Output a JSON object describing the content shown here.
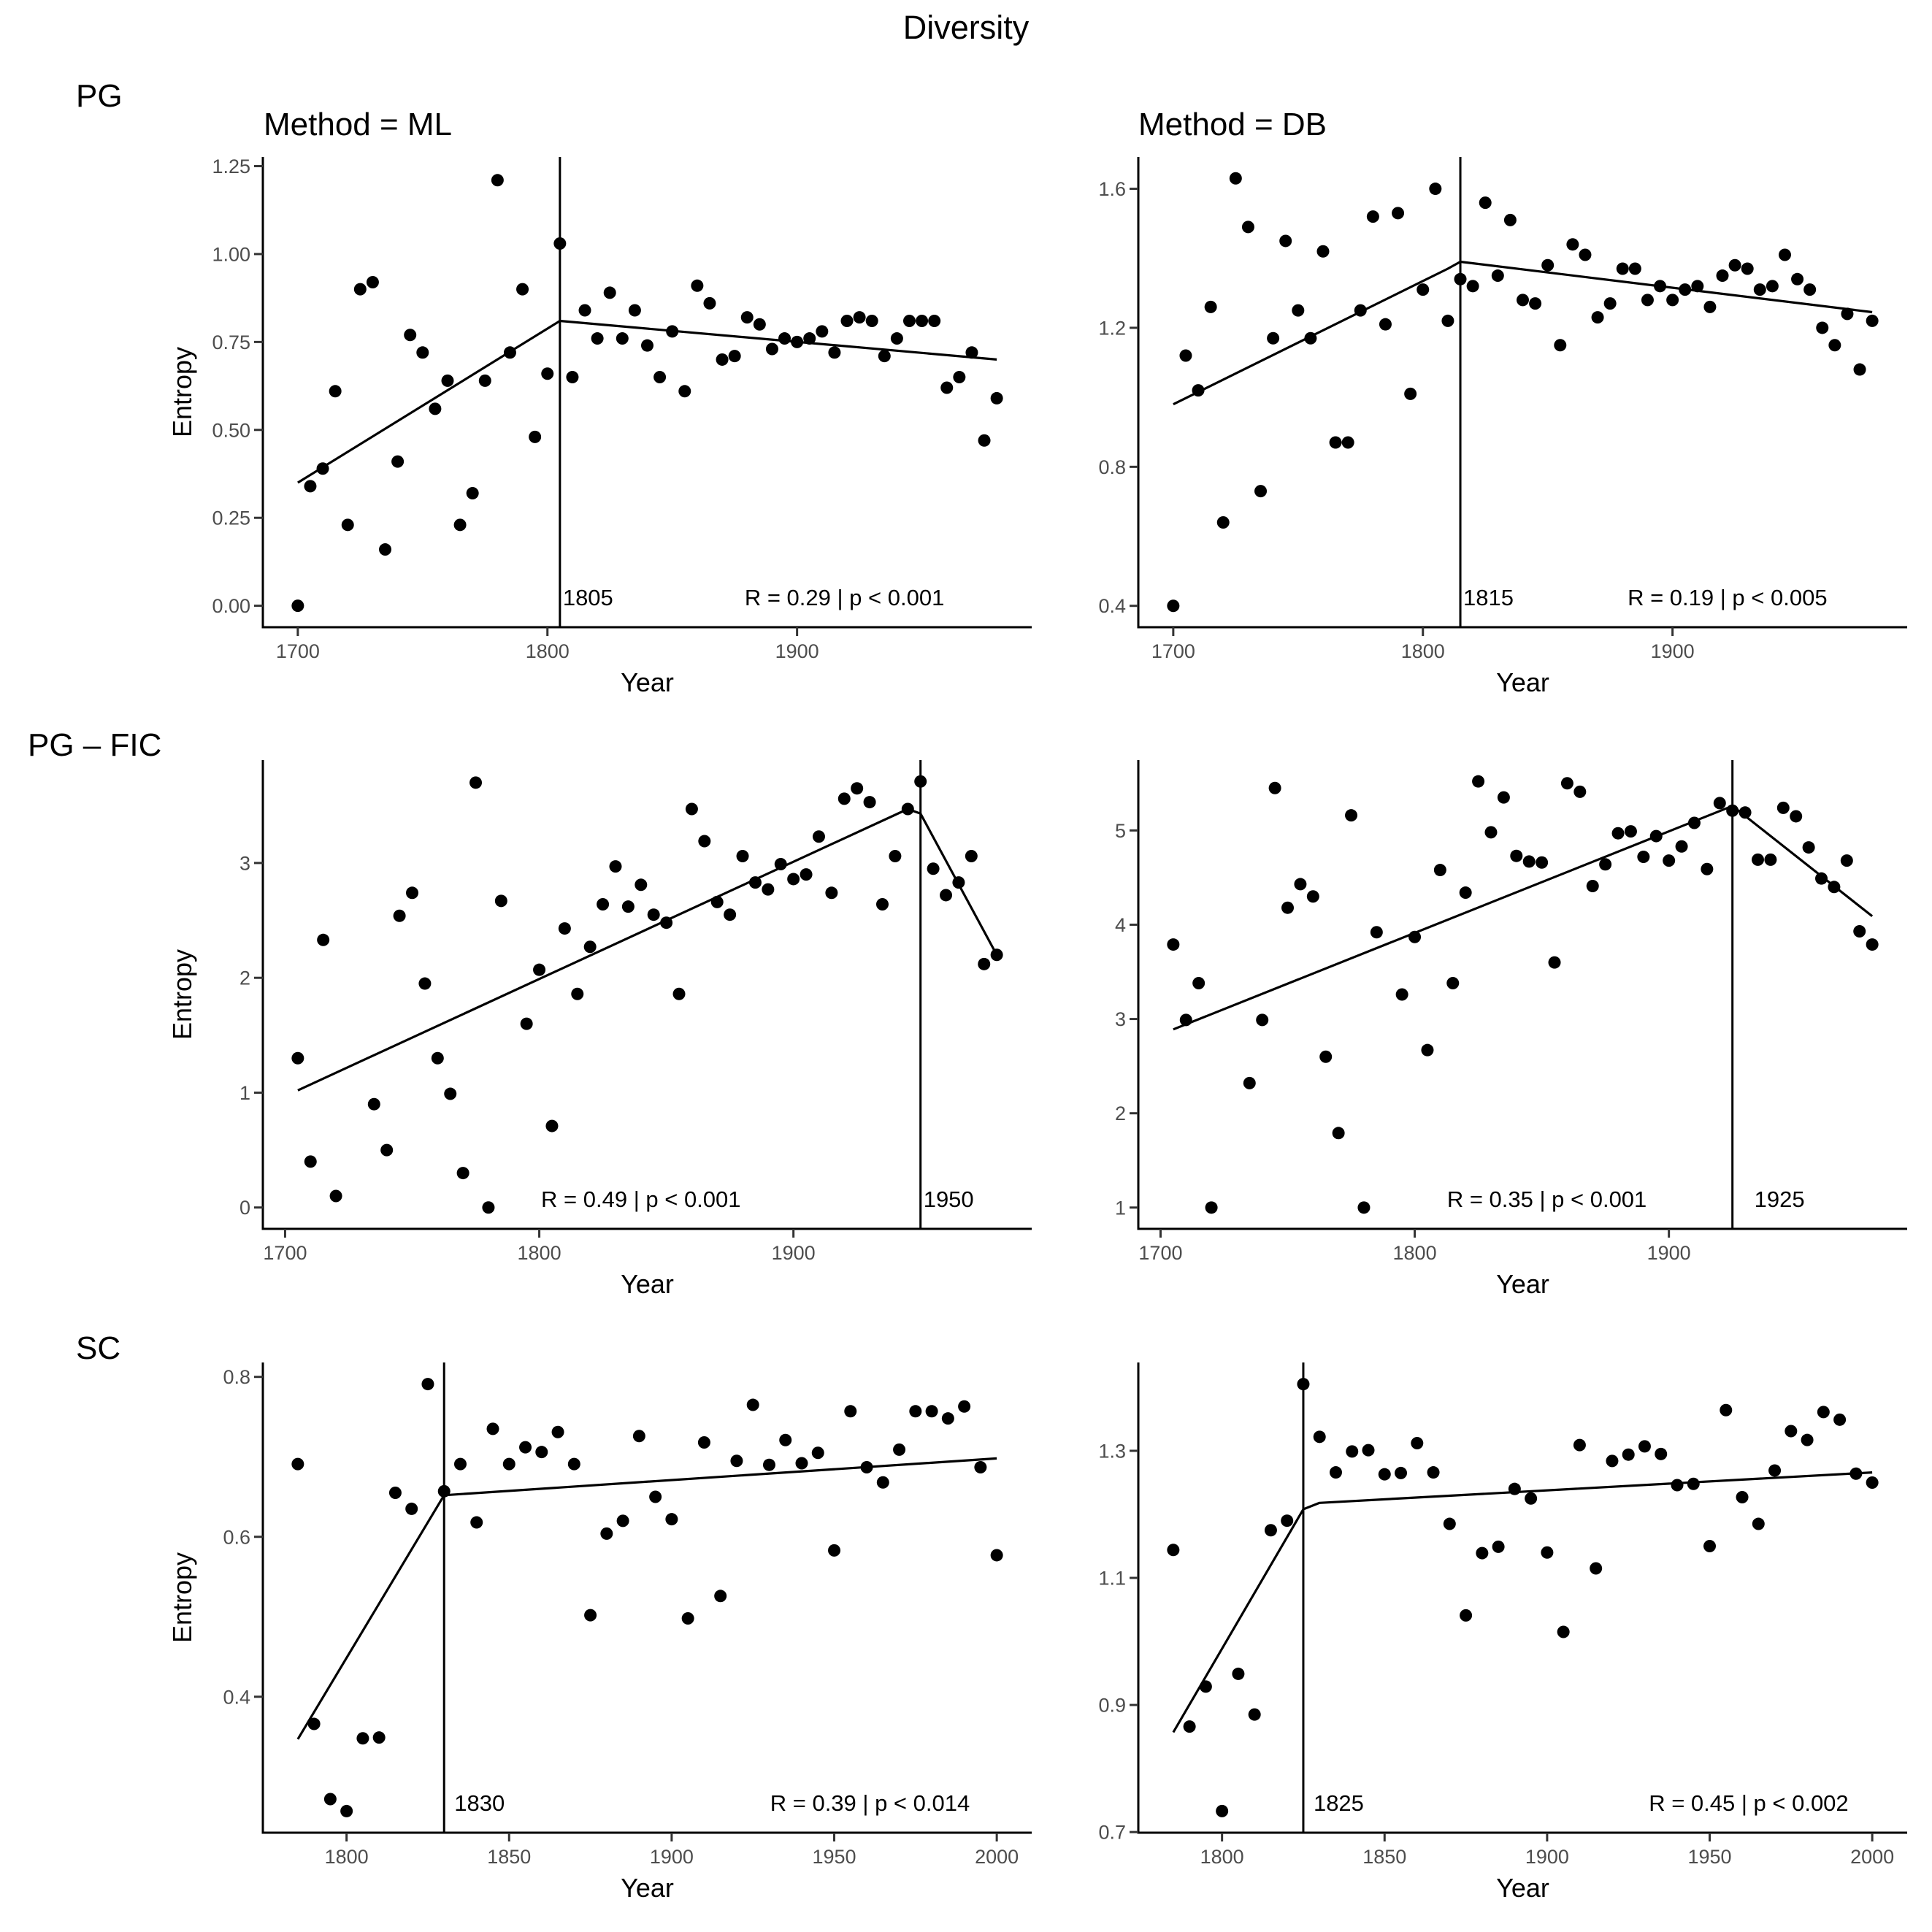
{
  "chart_data": {
    "type": "scatter",
    "title": "Diversity",
    "layout": "3 rows x 2 columns of faceted scatter plots with segmented (breakpoint) regression lines",
    "row_labels": [
      "PG",
      "PG – FIC",
      "SC"
    ],
    "column_titles": [
      "Method = ML",
      "Method = DB"
    ],
    "xlabel": "Year",
    "ylabel": "Entropy",
    "grid": false,
    "legend": "none",
    "panels": [
      {
        "row": "PG",
        "method": "ML",
        "xlim": [
          1686,
          1994
        ],
        "ylim": [
          -0.061,
          1.276
        ],
        "xticks": [
          1700,
          1800,
          1900
        ],
        "xtick_labels": [
          "1700",
          "1800",
          "1900"
        ],
        "yticks": [
          0,
          0.25,
          0.5,
          0.75,
          1.0,
          1.25
        ],
        "ytick_labels": [
          "0.00",
          "0.25",
          "0.50",
          "0.75",
          "1.00",
          "1.25"
        ],
        "breakpoint": 1805,
        "breakpoint_label": "1805",
        "stat_label": "R = 0.29 | p < 0.001",
        "stat_label_year": 1919,
        "breakpoint_label_side": "bottom",
        "fit_line": {
          "x": [
            1700,
            1805,
            1980
          ],
          "y": [
            0.35,
            0.81,
            0.7
          ]
        },
        "x": [
          1700,
          1705,
          1710,
          1715,
          1720,
          1725,
          1730,
          1735,
          1740,
          1745,
          1750,
          1755,
          1760,
          1765,
          1770,
          1775,
          1780,
          1785,
          1790,
          1795,
          1800,
          1805,
          1810,
          1815,
          1820,
          1825,
          1830,
          1835,
          1840,
          1845,
          1850,
          1855,
          1860,
          1865,
          1870,
          1875,
          1880,
          1885,
          1890,
          1895,
          1900,
          1905,
          1910,
          1915,
          1920,
          1925,
          1930,
          1935,
          1940,
          1945,
          1950,
          1955,
          1960,
          1965,
          1970,
          1975,
          1980
        ],
        "y": [
          0.0,
          0.34,
          0.39,
          0.61,
          0.23,
          0.9,
          0.92,
          0.16,
          0.41,
          0.77,
          0.72,
          0.56,
          0.64,
          0.23,
          0.32,
          0.64,
          1.21,
          0.72,
          0.9,
          0.48,
          0.66,
          1.03,
          0.65,
          0.84,
          0.76,
          0.89,
          0.76,
          0.84,
          0.74,
          0.65,
          0.78,
          0.61,
          0.91,
          0.86,
          0.7,
          0.71,
          0.82,
          0.8,
          0.73,
          0.76,
          0.75,
          0.76,
          0.78,
          0.72,
          0.81,
          0.82,
          0.81,
          0.71,
          0.76,
          0.81,
          0.81,
          0.81,
          0.62,
          0.65,
          0.72,
          0.47,
          0.59
        ]
      },
      {
        "row": "PG",
        "method": "DB",
        "xlim": [
          1686,
          1994
        ],
        "ylim": [
          0.3385,
          1.6915
        ],
        "xticks": [
          1700,
          1800,
          1900
        ],
        "xtick_labels": [
          "1700",
          "1800",
          "1900"
        ],
        "yticks": [
          0.4,
          0.8,
          1.2,
          1.6
        ],
        "ytick_labels": [
          "0.4",
          "0.8",
          "1.2",
          "1.6"
        ],
        "breakpoint": 1815,
        "breakpoint_label": "1815",
        "stat_label": "R = 0.19 | p < 0.005",
        "stat_label_year": 1922,
        "breakpoint_label_side": "bottom",
        "fit_line": {
          "x": [
            1700,
            1810,
            1815,
            1980
          ],
          "y": [
            0.98,
            1.37,
            1.39,
            1.245
          ]
        },
        "x": [
          1700,
          1705,
          1710,
          1715,
          1720,
          1725,
          1730,
          1735,
          1740,
          1745,
          1750,
          1755,
          1760,
          1765,
          1770,
          1775,
          1780,
          1785,
          1790,
          1795,
          1800,
          1805,
          1810,
          1815,
          1820,
          1825,
          1830,
          1835,
          1840,
          1845,
          1850,
          1855,
          1860,
          1865,
          1870,
          1875,
          1880,
          1885,
          1890,
          1895,
          1900,
          1905,
          1910,
          1915,
          1920,
          1925,
          1930,
          1935,
          1940,
          1945,
          1950,
          1955,
          1960,
          1965,
          1970,
          1975,
          1980
        ],
        "y": [
          0.4,
          1.12,
          1.02,
          1.26,
          0.64,
          1.63,
          1.49,
          0.73,
          1.17,
          1.45,
          1.25,
          1.17,
          1.42,
          0.87,
          0.87,
          1.25,
          1.52,
          1.21,
          1.53,
          1.01,
          1.31,
          1.6,
          1.22,
          1.34,
          1.32,
          1.56,
          1.35,
          1.51,
          1.28,
          1.27,
          1.38,
          1.15,
          1.44,
          1.41,
          1.23,
          1.27,
          1.37,
          1.37,
          1.28,
          1.32,
          1.28,
          1.31,
          1.32,
          1.26,
          1.35,
          1.38,
          1.37,
          1.31,
          1.32,
          1.41,
          1.34,
          1.31,
          1.2,
          1.15,
          1.24,
          1.08,
          1.22
        ]
      },
      {
        "row": "PG – FIC",
        "method": "ML",
        "xlim": [
          1691.25,
          1993.75
        ],
        "ylim": [
          -0.186,
          3.896
        ],
        "xticks": [
          1700,
          1800,
          1900
        ],
        "xtick_labels": [
          "1700",
          "1800",
          "1900"
        ],
        "yticks": [
          0,
          1,
          2,
          3
        ],
        "ytick_labels": [
          "0",
          "1",
          "2",
          "3"
        ],
        "breakpoint": 1950,
        "breakpoint_label": "1950",
        "stat_label": "R = 0.49 | p < 0.001",
        "stat_label_year": 1840,
        "fit_line": {
          "x": [
            1705,
            1945,
            1950,
            1980
          ],
          "y": [
            1.02,
            3.47,
            3.43,
            2.2
          ]
        },
        "x": [
          1705,
          1710,
          1715,
          1720,
          1735,
          1740,
          1745,
          1750,
          1755,
          1760,
          1765,
          1770,
          1775,
          1780,
          1785,
          1795,
          1800,
          1805,
          1810,
          1815,
          1820,
          1825,
          1830,
          1835,
          1840,
          1845,
          1850,
          1855,
          1860,
          1865,
          1870,
          1875,
          1880,
          1885,
          1890,
          1895,
          1900,
          1905,
          1910,
          1915,
          1920,
          1925,
          1930,
          1935,
          1940,
          1945,
          1950,
          1955,
          1960,
          1965,
          1970,
          1975,
          1980
        ],
        "y": [
          1.3,
          0.4,
          2.33,
          0.1,
          0.9,
          0.5,
          2.54,
          2.74,
          1.95,
          1.3,
          0.99,
          0.3,
          3.7,
          0.0,
          2.67,
          1.6,
          2.07,
          0.71,
          2.43,
          1.86,
          2.27,
          2.64,
          2.97,
          2.62,
          2.81,
          2.55,
          2.48,
          1.86,
          3.47,
          3.19,
          2.66,
          2.55,
          3.06,
          2.83,
          2.77,
          2.99,
          2.86,
          2.9,
          3.23,
          2.74,
          3.56,
          3.65,
          3.53,
          2.64,
          3.06,
          3.47,
          3.71,
          2.95,
          2.72,
          2.83,
          3.06,
          2.12,
          2.2
        ]
      },
      {
        "row": "PG – FIC",
        "method": "DB",
        "xlim": [
          1691.25,
          1993.75
        ],
        "ylim": [
          0.774,
          5.746
        ],
        "xticks": [
          1700,
          1800,
          1900
        ],
        "xtick_labels": [
          "1700",
          "1800",
          "1900"
        ],
        "yticks": [
          1,
          2,
          3,
          4,
          5
        ],
        "ytick_labels": [
          "1",
          "2",
          "3",
          "4",
          "5"
        ],
        "breakpoint": 1925,
        "breakpoint_label": "1925",
        "stat_label": "R = 0.35 | p < 0.001",
        "stat_label_year": 1852,
        "fit_line": {
          "x": [
            1705,
            1925,
            1980
          ],
          "y": [
            2.89,
            5.26,
            4.09
          ]
        },
        "x": [
          1705,
          1710,
          1715,
          1720,
          1735,
          1740,
          1745,
          1750,
          1755,
          1760,
          1765,
          1770,
          1775,
          1780,
          1785,
          1795,
          1800,
          1805,
          1810,
          1815,
          1820,
          1825,
          1830,
          1835,
          1840,
          1845,
          1850,
          1855,
          1860,
          1865,
          1870,
          1875,
          1880,
          1885,
          1890,
          1895,
          1900,
          1905,
          1910,
          1915,
          1920,
          1925,
          1930,
          1935,
          1940,
          1945,
          1950,
          1955,
          1960,
          1965,
          1970,
          1975,
          1980
        ],
        "y": [
          3.79,
          2.99,
          3.38,
          1.0,
          2.32,
          2.99,
          5.45,
          4.18,
          4.43,
          4.3,
          2.6,
          1.79,
          5.16,
          1.0,
          3.92,
          3.26,
          3.87,
          2.67,
          4.58,
          3.38,
          4.34,
          5.52,
          4.98,
          5.35,
          4.73,
          4.67,
          4.66,
          3.6,
          5.5,
          5.41,
          4.41,
          4.64,
          4.97,
          4.99,
          4.72,
          4.94,
          4.68,
          4.83,
          5.08,
          4.59,
          5.29,
          5.21,
          5.19,
          4.69,
          4.69,
          5.24,
          5.15,
          4.82,
          4.49,
          4.4,
          4.68,
          3.93,
          3.79
        ]
      },
      {
        "row": "SC",
        "method": "ML",
        "xlim": [
          1774.25,
          2010.75
        ],
        "ylim": [
          0.23,
          0.818
        ],
        "xticks": [
          1800,
          1850,
          1900,
          1950,
          2000
        ],
        "xtick_labels": [
          "1800",
          "1850",
          "1900",
          "1950",
          "2000"
        ],
        "yticks": [
          0.4,
          0.6,
          0.8
        ],
        "ytick_labels": [
          "0.4",
          "0.6",
          "0.8"
        ],
        "breakpoint": 1830,
        "breakpoint_label": "1830",
        "stat_label": "R = 0.39 | p < 0.014",
        "stat_label_year": 1961,
        "fit_line": {
          "x": [
            1785,
            1830,
            2000
          ],
          "y": [
            0.347,
            0.652,
            0.698
          ]
        },
        "x": [
          1785,
          1790,
          1795,
          1800,
          1805,
          1810,
          1815,
          1820,
          1825,
          1830,
          1835,
          1840,
          1845,
          1850,
          1855,
          1860,
          1865,
          1870,
          1875,
          1880,
          1885,
          1890,
          1895,
          1900,
          1905,
          1910,
          1915,
          1920,
          1925,
          1930,
          1935,
          1940,
          1945,
          1950,
          1955,
          1960,
          1965,
          1970,
          1975,
          1980,
          1985,
          1990,
          1995,
          2000
        ],
        "y": [
          0.691,
          0.366,
          0.272,
          0.257,
          0.348,
          0.349,
          0.655,
          0.635,
          0.791,
          0.657,
          0.691,
          0.618,
          0.735,
          0.691,
          0.712,
          0.706,
          0.731,
          0.691,
          0.502,
          0.604,
          0.62,
          0.726,
          0.65,
          0.622,
          0.498,
          0.718,
          0.526,
          0.695,
          0.765,
          0.69,
          0.721,
          0.692,
          0.705,
          0.583,
          0.757,
          0.687,
          0.668,
          0.709,
          0.757,
          0.757,
          0.748,
          0.763,
          0.687,
          0.577
        ]
      },
      {
        "row": "SC",
        "method": "DB",
        "xlim": [
          1774.25,
          2010.75
        ],
        "ylim": [
          0.699,
          1.439
        ],
        "xticks": [
          1800,
          1850,
          1900,
          1950,
          2000
        ],
        "xtick_labels": [
          "1800",
          "1850",
          "1900",
          "1950",
          "2000"
        ],
        "yticks": [
          0.7,
          0.9,
          1.1,
          1.3
        ],
        "ytick_labels": [
          "0.7",
          "0.9",
          "1.1",
          "1.3"
        ],
        "breakpoint": 1825,
        "breakpoint_label": "1825",
        "stat_label": "R = 0.45 | p < 0.002",
        "stat_label_year": 1962,
        "fit_line": {
          "x": [
            1785,
            1825,
            1830,
            2000
          ],
          "y": [
            0.857,
            1.208,
            1.218,
            1.266
          ]
        },
        "x": [
          1785,
          1790,
          1795,
          1800,
          1805,
          1810,
          1815,
          1820,
          1825,
          1830,
          1835,
          1840,
          1845,
          1850,
          1855,
          1860,
          1865,
          1870,
          1875,
          1880,
          1885,
          1890,
          1895,
          1900,
          1905,
          1910,
          1915,
          1920,
          1925,
          1930,
          1935,
          1940,
          1945,
          1950,
          1955,
          1960,
          1965,
          1970,
          1975,
          1980,
          1985,
          1990,
          1995,
          2000
        ],
        "y": [
          1.144,
          0.866,
          0.929,
          0.733,
          0.949,
          0.885,
          1.175,
          1.19,
          1.405,
          1.322,
          1.266,
          1.299,
          1.301,
          1.263,
          1.265,
          1.312,
          1.266,
          1.185,
          1.041,
          1.139,
          1.149,
          1.24,
          1.225,
          1.14,
          1.015,
          1.309,
          1.115,
          1.284,
          1.294,
          1.307,
          1.295,
          1.246,
          1.248,
          1.15,
          1.364,
          1.227,
          1.185,
          1.269,
          1.331,
          1.317,
          1.361,
          1.349,
          1.264,
          1.25
        ]
      }
    ]
  }
}
